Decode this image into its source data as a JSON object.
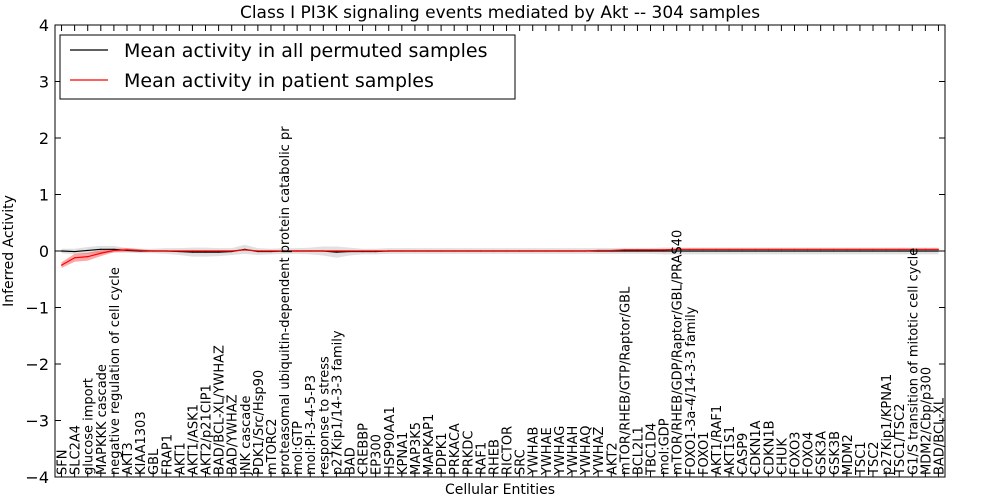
{
  "chart_data": {
    "type": "line",
    "title": "Class I PI3K signaling events mediated by Akt -- 304 samples",
    "xlabel": "Cellular Entities",
    "ylabel": "Inferred Activity",
    "ylim": [
      -4,
      4
    ],
    "yticks": [
      "−4",
      "−3",
      "−2",
      "−1",
      "0",
      "1",
      "2",
      "3",
      "4"
    ],
    "ytick_values": [
      -4,
      -3,
      -2,
      -1,
      0,
      1,
      2,
      3,
      4
    ],
    "legend_position": "top-left",
    "categories": [
      "SFN",
      "SLC2A4",
      "glucose import",
      "MAPKKK cascade",
      "negative regulation of cell cycle",
      "AKT3",
      "KIAA1303",
      "GBL",
      "FRAP1",
      "AKT1",
      "AKT1/ASK1",
      "AKT2/p21CIP1",
      "BAD/BCL-XL/YWHAZ",
      "BAD/YWHAZ",
      "JNK cascade",
      "PDK1/Src/Hsp90",
      "mTORC2",
      "proteasomal ubiquitin-dependent protein catabolic pr",
      "mol:GTP",
      "mol:PI-3-4-5-P3",
      "response to stress",
      "p27Kip1/14-3-3 family",
      "BAD",
      "CREBBP",
      "EP300",
      "HSP90AA1",
      "KPNA1",
      "MAP3K5",
      "MAPKAP1",
      "PDPK1",
      "PRKACA",
      "PRKDC",
      "RAF1",
      "RHEB",
      "RICTOR",
      "SRC",
      "YWHAB",
      "YWHAE",
      "YWHAG",
      "YWHAH",
      "YWHAQ",
      "YWHAZ",
      "AKT2",
      "mTOR/RHEB/GTP/Raptor/GBL",
      "BCL2L1",
      "TBC1D4",
      "mol:GDP",
      "mTOR/RHEB/GDP/Raptor/GBL/PRAS40",
      "FOXO1-3a-4/14-3-3 family",
      "FOXO1",
      "AKT1/RAF1",
      "AKT1S1",
      "CASP9",
      "CDKN1A",
      "CDKN1B",
      "CHUK",
      "FOXO3",
      "FOXO4",
      "GSK3A",
      "GSK3B",
      "MDM2",
      "TSC1",
      "TSC2",
      "p27Kip1/KPNA1",
      "TSC1/TSC2",
      "G1/S transition of mitotic cell cycle",
      "MDM2/Cbp/p300",
      "BAD/BCL-XL"
    ],
    "series": [
      {
        "name": "Mean activity in all permuted samples",
        "color": "#000000",
        "values": [
          0,
          -0.01,
          0.01,
          0.03,
          0.03,
          0.01,
          0,
          0,
          0,
          -0.01,
          -0.02,
          -0.02,
          -0.02,
          -0.01,
          0.03,
          -0.01,
          -0.01,
          0,
          0,
          0,
          0,
          -0.02,
          -0.01,
          -0.01,
          -0.01,
          0,
          0,
          0,
          0,
          0,
          0,
          0,
          0,
          0,
          0,
          0,
          0,
          0,
          0,
          0,
          0,
          0,
          0,
          0,
          0,
          0,
          0,
          0,
          0,
          0,
          0,
          0,
          0,
          0,
          0,
          0,
          0,
          0,
          0,
          0,
          0,
          0,
          0,
          0,
          0,
          0,
          0,
          0
        ],
        "band": [
          0.04,
          0.05,
          0.06,
          0.06,
          0.06,
          0.04,
          0.04,
          0.04,
          0.05,
          0.06,
          0.08,
          0.08,
          0.07,
          0.06,
          0.08,
          0.06,
          0.05,
          0.05,
          0.05,
          0.06,
          0.08,
          0.1,
          0.07,
          0.05,
          0.05,
          0.05,
          0.05,
          0.05,
          0.05,
          0.05,
          0.05,
          0.05,
          0.05,
          0.05,
          0.05,
          0.05,
          0.05,
          0.05,
          0.05,
          0.05,
          0.05,
          0.05,
          0.05,
          0.05,
          0.05,
          0.05,
          0.06,
          0.06,
          0.06,
          0.06,
          0.06,
          0.06,
          0.06,
          0.06,
          0.06,
          0.06,
          0.06,
          0.06,
          0.06,
          0.06,
          0.06,
          0.06,
          0.06,
          0.06,
          0.06,
          0.06,
          0.06,
          0.06
        ]
      },
      {
        "name": "Mean activity in patient samples",
        "color": "#ff0000",
        "values": [
          -0.25,
          -0.12,
          -0.1,
          -0.04,
          0.01,
          0.02,
          0.01,
          0,
          0,
          0,
          0,
          0,
          0,
          0,
          0.02,
          0,
          0,
          0,
          0,
          0,
          0,
          0,
          0,
          0,
          0,
          0,
          0,
          0,
          0,
          0,
          0,
          0,
          0,
          0,
          0,
          0,
          0,
          0,
          0,
          0,
          0,
          0.01,
          0.01,
          0.02,
          0.02,
          0.02,
          0.02,
          0.03,
          0.03,
          0.03,
          0.03,
          0.03,
          0.03,
          0.03,
          0.03,
          0.03,
          0.03,
          0.03,
          0.03,
          0.03,
          0.03,
          0.03,
          0.03,
          0.03,
          0.03,
          0.03,
          0.03,
          0.03
        ],
        "band": [
          0.05,
          0.07,
          0.07,
          0.05,
          0.03,
          0.03,
          0.02,
          0.01,
          0.01,
          0.01,
          0.01,
          0.01,
          0.01,
          0.01,
          0.01,
          0.01,
          0.01,
          0.01,
          0.01,
          0.01,
          0.01,
          0.01,
          0.01,
          0.01,
          0.01,
          0.01,
          0.01,
          0.01,
          0.01,
          0.01,
          0.01,
          0.01,
          0.01,
          0.01,
          0.01,
          0.01,
          0.01,
          0.01,
          0.01,
          0.01,
          0.01,
          0.01,
          0.01,
          0.01,
          0.01,
          0.01,
          0.01,
          0.01,
          0.01,
          0.01,
          0.01,
          0.01,
          0.01,
          0.01,
          0.01,
          0.01,
          0.01,
          0.01,
          0.01,
          0.01,
          0.01,
          0.01,
          0.01,
          0.01,
          0.01,
          0.01,
          0.01,
          0.01
        ]
      }
    ]
  }
}
